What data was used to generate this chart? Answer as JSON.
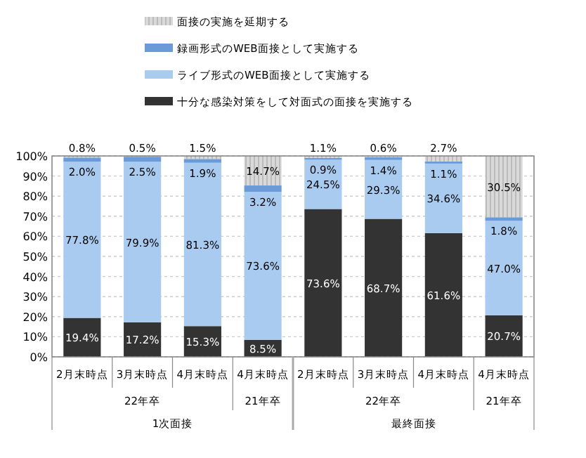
{
  "chart_data": {
    "type": "bar",
    "stacked": true,
    "categories": [
      "2月末時点",
      "3月末時点",
      "4月末時点",
      "4月末時点",
      "2月末時点",
      "3月末時点",
      "4月末時点",
      "4月末時点"
    ],
    "series": [
      {
        "name": "十分な感染対策をして対面式の面接を実施する",
        "color": "#333333",
        "values": [
          19.4,
          17.2,
          15.3,
          8.5,
          73.6,
          68.7,
          61.6,
          20.7
        ],
        "value_labels": [
          "19.4%",
          "17.2%",
          "15.3%",
          "8.5%",
          "73.6%",
          "68.7%",
          "61.6%",
          "20.7%"
        ]
      },
      {
        "name": "ライブ形式のWEB面接として実施する",
        "color": "#a9cbf0",
        "values": [
          77.8,
          79.9,
          81.3,
          73.6,
          24.5,
          29.3,
          34.6,
          47.0
        ],
        "value_labels": [
          "77.8%",
          "79.9%",
          "81.3%",
          "73.6%",
          "24.5%",
          "29.3%",
          "34.6%",
          "47.0%"
        ]
      },
      {
        "name": "録画形式のWEB面接として実施する",
        "color": "#6a9ad8",
        "values": [
          2.0,
          2.5,
          1.9,
          3.2,
          0.9,
          1.4,
          1.1,
          1.8
        ],
        "value_labels": [
          "2.0%",
          "2.5%",
          "1.9%",
          "3.2%",
          "0.9%",
          "1.4%",
          "1.1%",
          "1.8%"
        ]
      },
      {
        "name": "面接の実施を延期する",
        "color": "#d9d9d9",
        "values": [
          0.8,
          0.5,
          1.5,
          14.7,
          1.1,
          0.6,
          2.7,
          30.5
        ],
        "value_labels": [
          "0.8%",
          "0.5%",
          "1.5%",
          "14.7%",
          "1.1%",
          "0.6%",
          "2.7%",
          "30.5%"
        ]
      }
    ],
    "ylim": [
      0,
      100
    ],
    "yticks": [
      {
        "value": 0,
        "label": "0%"
      },
      {
        "value": 10,
        "label": "10%"
      },
      {
        "value": 20,
        "label": "20%"
      },
      {
        "value": 30,
        "label": "30%"
      },
      {
        "value": 40,
        "label": "40%"
      },
      {
        "value": 50,
        "label": "50%"
      },
      {
        "value": 60,
        "label": "60%"
      },
      {
        "value": 70,
        "label": "70%"
      },
      {
        "value": 80,
        "label": "80%"
      },
      {
        "value": 90,
        "label": "90%"
      },
      {
        "value": 100,
        "label": "100%"
      }
    ],
    "grid": "y",
    "legend": "top",
    "annotations": [
      "22年卒",
      "21年卒",
      "22年卒",
      "21年卒",
      "1次面接",
      "最終面接"
    ]
  }
}
